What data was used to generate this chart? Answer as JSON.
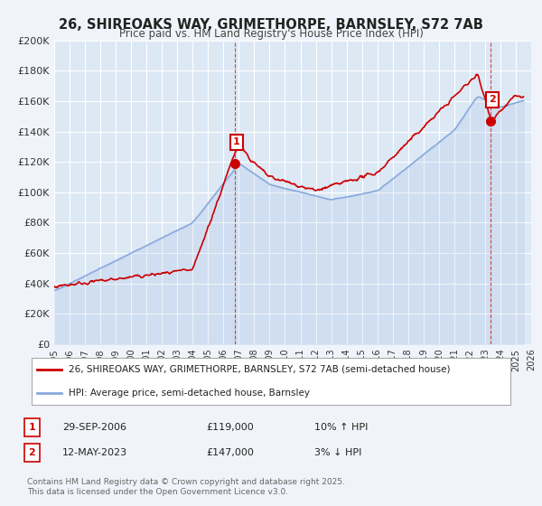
{
  "title": "26, SHIREOAKS WAY, GRIMETHORPE, BARNSLEY, S72 7AB",
  "subtitle": "Price paid vs. HM Land Registry's House Price Index (HPI)",
  "bg_color": "#f0f4fa",
  "plot_bg_color": "#dde8f5",
  "grid_color": "#ffffff",
  "red_line_color": "#cc0000",
  "blue_line_color": "#88aadd",
  "marker1_date_year": 2006.75,
  "marker2_date_year": 2023.37,
  "marker1_price": 119000,
  "marker2_price": 147000,
  "ylim": [
    0,
    200000
  ],
  "xlim_start": 1995,
  "xlim_end": 2026,
  "ytick_step": 20000,
  "legend_line1": "26, SHIREOAKS WAY, GRIMETHORPE, BARNSLEY, S72 7AB (semi-detached house)",
  "legend_line2": "HPI: Average price, semi-detached house, Barnsley",
  "annotation1_label": "1",
  "annotation1_date": "29-SEP-2006",
  "annotation1_price": "£119,000",
  "annotation1_hpi": "10% ↑ HPI",
  "annotation2_label": "2",
  "annotation2_date": "12-MAY-2023",
  "annotation2_price": "£147,000",
  "annotation2_hpi": "3% ↓ HPI",
  "footnote": "Contains HM Land Registry data © Crown copyright and database right 2025.\nThis data is licensed under the Open Government Licence v3.0."
}
